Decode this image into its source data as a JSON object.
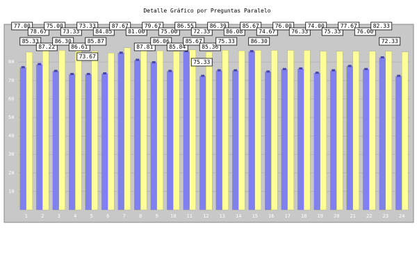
{
  "chart_data": {
    "type": "bar",
    "title": "Detalle Gráfico por Preguntas Paralelo",
    "categories": [
      "1",
      "2",
      "3",
      "4",
      "5",
      "6",
      "7",
      "8",
      "9",
      "10",
      "11",
      "12",
      "13",
      "14",
      "15",
      "16",
      "17",
      "18",
      "19",
      "20",
      "21",
      "22",
      "23",
      "24"
    ],
    "ylim": [
      0,
      100
    ],
    "yticks": [
      10,
      20,
      30,
      40,
      50,
      60,
      70,
      80
    ],
    "grid": true,
    "legend": "none",
    "series": [
      {
        "color": "#8080f0",
        "values": [
          77.0,
          78.67,
          75.0,
          73.33,
          73.33,
          73.67,
          84.85,
          81.0,
          79.67,
          75.0,
          85.67,
          72.33,
          75.33,
          75.33,
          85.67,
          74.67,
          76.0,
          76.33,
          74.0,
          75.33,
          77.67,
          76.0,
          82.33,
          72.33
        ]
      },
      {
        "color": "#ffff99",
        "values": [
          85.33,
          87.22,
          86.3,
          86.61,
          85.87,
          84.85,
          87.67,
          87.81,
          86.06,
          85.84,
          86.55,
          85.36,
          86.39,
          86.08,
          86.3,
          86.3,
          86.3,
          86.3,
          85.8,
          85.8,
          85.8,
          85.8,
          85.8,
          85.4
        ]
      }
    ],
    "data_labels": [
      {
        "text": "77.00",
        "cat": 1
      },
      {
        "text": "85.33",
        "cat": 1
      },
      {
        "text": "78.67",
        "cat": 2
      },
      {
        "text": "87.22",
        "cat": 2
      },
      {
        "text": "75.00",
        "cat": 3
      },
      {
        "text": "86.30",
        "cat": 3
      },
      {
        "text": "73.33",
        "cat": 4
      },
      {
        "text": "86.61",
        "cat": 4
      },
      {
        "text": "73.33",
        "cat": 5
      },
      {
        "text": "85.87",
        "cat": 5
      },
      {
        "text": "73.67",
        "cat": 5
      },
      {
        "text": "84.85",
        "cat": 6
      },
      {
        "text": "87.67",
        "cat": 7
      },
      {
        "text": "81.00",
        "cat": 8
      },
      {
        "text": "87.81",
        "cat": 8
      },
      {
        "text": "79.67",
        "cat": 9
      },
      {
        "text": "86.06",
        "cat": 9
      },
      {
        "text": "75.00",
        "cat": 10
      },
      {
        "text": "85.84",
        "cat": 10
      },
      {
        "text": "86.55",
        "cat": 11
      },
      {
        "text": "85.67",
        "cat": 11
      },
      {
        "text": "72.33",
        "cat": 12
      },
      {
        "text": "85.36",
        "cat": 12
      },
      {
        "text": "75.33",
        "cat": 12
      },
      {
        "text": "86.39",
        "cat": 13
      },
      {
        "text": "75.33",
        "cat": 13
      },
      {
        "text": "86.08",
        "cat": 14
      },
      {
        "text": "85.67",
        "cat": 15
      },
      {
        "text": "86.30",
        "cat": 15
      },
      {
        "text": "74.67",
        "cat": 16
      },
      {
        "text": "76.00",
        "cat": 17
      },
      {
        "text": "76.33",
        "cat": 18
      },
      {
        "text": "74.00",
        "cat": 19
      },
      {
        "text": "75.33",
        "cat": 20
      },
      {
        "text": "77.67",
        "cat": 21
      },
      {
        "text": "76.00",
        "cat": 22
      },
      {
        "text": "82.33",
        "cat": 23
      },
      {
        "text": "72.33",
        "cat": 23
      }
    ]
  }
}
